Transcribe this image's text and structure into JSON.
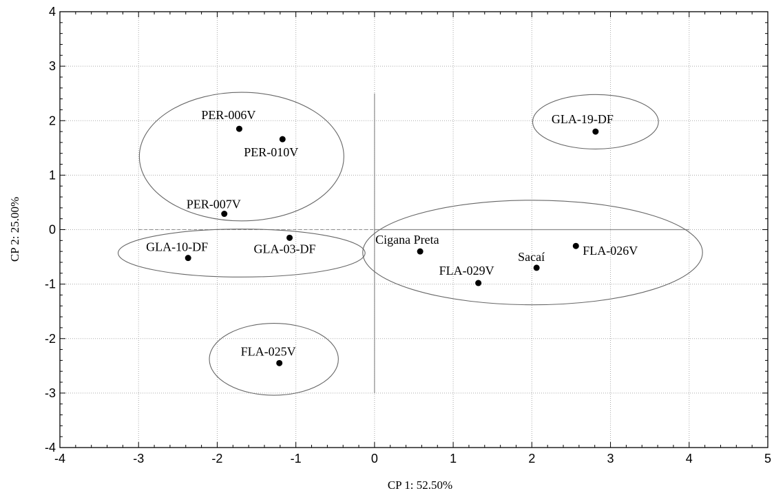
{
  "chart_data": {
    "type": "scatter",
    "title": "",
    "xlabel": "CP 1: 52.50%",
    "ylabel": "CP 2: 25.00%",
    "xlim": [
      -4,
      5
    ],
    "ylim": [
      -4,
      4
    ],
    "x_ticks": [
      -4,
      -3,
      -2,
      -1,
      0,
      1,
      2,
      3,
      4,
      5
    ],
    "y_ticks": [
      -4,
      -3,
      -2,
      -1,
      0,
      1,
      2,
      3,
      4
    ],
    "grid": true,
    "points": [
      {
        "label": "PER-006V",
        "x": -1.72,
        "y": 1.85
      },
      {
        "label": "PER-010V",
        "x": -1.17,
        "y": 1.66
      },
      {
        "label": "PER-007V",
        "x": -1.91,
        "y": 0.29
      },
      {
        "label": "GLA-10-DF",
        "x": -2.37,
        "y": -0.52
      },
      {
        "label": "GLA-03-DF",
        "x": -1.08,
        "y": -0.15
      },
      {
        "label": "FLA-025V",
        "x": -1.21,
        "y": -2.45
      },
      {
        "label": "Cigana Preta",
        "x": 0.58,
        "y": -0.4
      },
      {
        "label": "FLA-029V",
        "x": 1.32,
        "y": -0.98
      },
      {
        "label": "Sacaí",
        "x": 2.06,
        "y": -0.7
      },
      {
        "label": "FLA-026V",
        "x": 2.56,
        "y": -0.3
      },
      {
        "label": "GLA-19-DF",
        "x": 2.81,
        "y": 1.8
      }
    ],
    "groups": [
      {
        "cx": -1.69,
        "cy": 1.34,
        "rx": 1.3,
        "ry": 1.18
      },
      {
        "cx": -1.69,
        "cy": -0.43,
        "rx": 1.57,
        "ry": 0.44
      },
      {
        "cx": -1.28,
        "cy": -2.38,
        "rx": 0.82,
        "ry": 0.66
      },
      {
        "cx": 2.81,
        "cy": 1.98,
        "rx": 0.8,
        "ry": 0.5
      },
      {
        "cx": 2.01,
        "cy": -0.42,
        "rx": 2.16,
        "ry": 0.96
      }
    ],
    "reference_lines": {
      "x": 0,
      "y": 0
    }
  }
}
